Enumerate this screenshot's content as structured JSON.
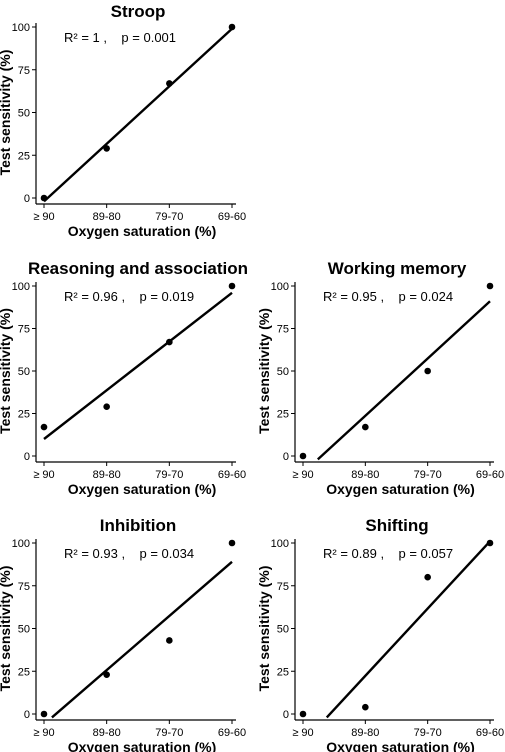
{
  "chart_data": [
    {
      "type": "scatter",
      "title": "Stroop",
      "xlabel": "Oxygen saturation (%)",
      "ylabel": "Test sensitivity (%)",
      "categories": [
        "≥ 90",
        "89-80",
        "79-70",
        "69-60"
      ],
      "y_ticks": [
        "0",
        "25",
        "50",
        "75",
        "100"
      ],
      "ylim": [
        0,
        100
      ],
      "values": [
        0,
        29,
        67,
        100
      ],
      "fit_line": {
        "y_start": -2,
        "y_end": 99
      },
      "annotation": "R² = 1 ,    p = 0.001",
      "grid": false
    },
    {
      "type": "scatter",
      "title": "Reasoning and association",
      "xlabel": "Oxygen saturation (%)",
      "ylabel": "Test sensitivity (%)",
      "categories": [
        "≥ 90",
        "89-80",
        "79-70",
        "69-60"
      ],
      "y_ticks": [
        "0",
        "25",
        "50",
        "75",
        "100"
      ],
      "ylim": [
        0,
        100
      ],
      "values": [
        17,
        29,
        67,
        100
      ],
      "fit_line": {
        "y_start": 10,
        "y_end": 96
      },
      "annotation": "R² = 0.96 ,    p = 0.019",
      "grid": false
    },
    {
      "type": "scatter",
      "title": "Working memory",
      "xlabel": "Oxygen saturation (%)",
      "ylabel": "Test sensitivity (%)",
      "categories": [
        "≥ 90",
        "89-80",
        "79-70",
        "69-60"
      ],
      "y_ticks": [
        "0",
        "25",
        "50",
        "75",
        "100"
      ],
      "ylim": [
        0,
        100
      ],
      "values": [
        0,
        17,
        50,
        100
      ],
      "fit_line": {
        "y_start": -10,
        "y_end": 91
      },
      "annotation": "R² = 0.95 ,    p = 0.024",
      "grid": false
    },
    {
      "type": "scatter",
      "title": "Inhibition",
      "xlabel": "Oxygen saturation (%)",
      "ylabel": "Test sensitivity (%)",
      "categories": [
        "≥ 90",
        "89-80",
        "79-70",
        "69-60"
      ],
      "y_ticks": [
        "0",
        "25",
        "50",
        "75",
        "100"
      ],
      "ylim": [
        0,
        100
      ],
      "values": [
        0,
        23,
        43,
        100
      ],
      "fit_line": {
        "y_start": -6,
        "y_end": 89
      },
      "annotation": "R² = 0.93 ,    p = 0.034",
      "grid": false
    },
    {
      "type": "scatter",
      "title": "Shifting",
      "xlabel": "Oxygen saturation (%)",
      "ylabel": "Test sensitivity (%)",
      "categories": [
        "≥ 90",
        "89-80",
        "79-70",
        "69-60"
      ],
      "y_ticks": [
        "0",
        "25",
        "50",
        "75",
        "100"
      ],
      "ylim": [
        0,
        100
      ],
      "values": [
        0,
        4,
        80,
        100
      ],
      "fit_line": {
        "y_start": -17,
        "y_end": 101
      },
      "annotation": "R² = 0.89 ,    p = 0.057",
      "grid": false
    }
  ]
}
